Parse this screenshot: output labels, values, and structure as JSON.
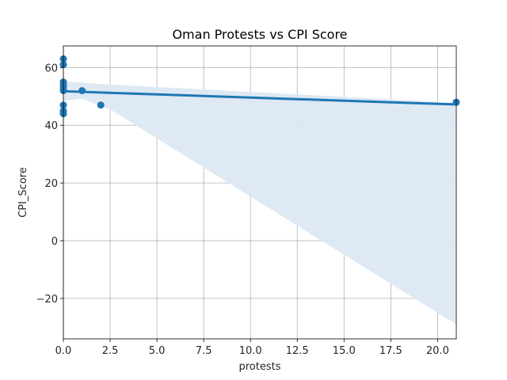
{
  "chart_data": {
    "type": "scatter",
    "title": "Oman Protests vs CPI Score",
    "xlabel": "protests",
    "ylabel": "CPI_Score",
    "xlim": [
      0,
      21
    ],
    "ylim": [
      -34,
      67.5
    ],
    "xticks": [
      0,
      2.5,
      5,
      7.5,
      10,
      12.5,
      15,
      17.5,
      20
    ],
    "xtick_labels": [
      "0.0",
      "2.5",
      "5.0",
      "7.5",
      "10.0",
      "12.5",
      "15.0",
      "17.5",
      "20.0"
    ],
    "yticks": [
      -20,
      0,
      20,
      40,
      60
    ],
    "ytick_labels": [
      "−20",
      "0",
      "20",
      "40",
      "60"
    ],
    "grid": true,
    "series": [
      {
        "name": "observations",
        "x": [
          0,
          0,
          0,
          0,
          0,
          0,
          0,
          0,
          0,
          1,
          2,
          21
        ],
        "y": [
          63,
          61,
          55,
          54,
          53,
          47,
          45,
          44,
          52,
          52,
          47,
          48
        ]
      }
    ],
    "regression": {
      "x": [
        0,
        21
      ],
      "y": [
        51.8,
        47.2
      ],
      "ci_lower": [
        [
          0,
          48.5
        ],
        [
          1,
          49.2
        ],
        [
          2.5,
          45.5
        ],
        [
          21,
          -29
        ]
      ],
      "ci_upper": [
        [
          0,
          55.3
        ],
        [
          2,
          54.3
        ],
        [
          21,
          47.8
        ]
      ]
    },
    "colors": {
      "points": "#1f77b4",
      "line": "#1f77b4",
      "band": "#dce8f3"
    }
  }
}
